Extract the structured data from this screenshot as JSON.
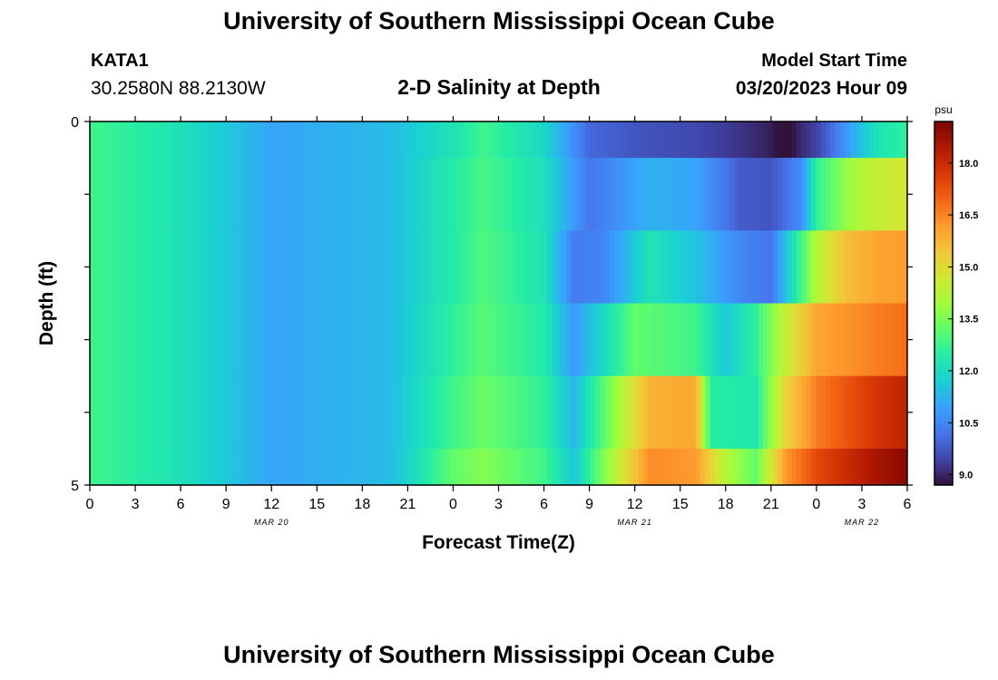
{
  "header": {
    "title_top": "University of Southern Mississippi Ocean Cube",
    "title_bottom": "University of Southern Mississippi Ocean Cube",
    "station_id": "KATA1",
    "station_coords": "30.2580N  88.2130W",
    "chart_title": "2-D Salinity at Depth",
    "model_start_label": "Model Start Time",
    "model_start_value": "03/20/2023 Hour 09"
  },
  "colors": {
    "colormap": [
      "#30123b",
      "#4145ab",
      "#4675ed",
      "#39a2fc",
      "#1bcfd4",
      "#24eca6",
      "#61fc6c",
      "#a4fc3b",
      "#d1e834",
      "#f3c63a",
      "#fe9b2d",
      "#f36315",
      "#d93806",
      "#b11901",
      "#7a0402"
    ]
  },
  "chart_data": {
    "type": "heatmap",
    "title": "2-D Salinity at Depth",
    "xlabel": "Forecast Time(Z)",
    "ylabel": "Depth (ft)",
    "x_tick_labels": [
      "0",
      "3",
      "6",
      "9",
      "12",
      "15",
      "18",
      "21",
      "0",
      "3",
      "6",
      "9",
      "12",
      "15",
      "18",
      "21",
      "0",
      "3",
      "6"
    ],
    "date_labels": [
      {
        "text": "MAR 20",
        "hour_index": 12
      },
      {
        "text": "MAR 21",
        "hour_index": 36
      },
      {
        "text": "MAR 22",
        "hour_index": 51
      }
    ],
    "x_range_hours": [
      0,
      54
    ],
    "y_tick_labels": [
      "0",
      "5"
    ],
    "y_range": [
      0,
      5
    ],
    "colorbar": {
      "unit": "psu",
      "range": [
        8.7,
        19.2
      ],
      "tick_labels": [
        "9.0",
        "10.5",
        "12.0",
        "13.5",
        "15.0",
        "16.5",
        "18.0"
      ],
      "tick_values": [
        9.0,
        10.5,
        12.0,
        13.5,
        15.0,
        16.5,
        18.0
      ]
    },
    "depth_layers": [
      {
        "depth_range": [
          0,
          0.5
        ],
        "t": [
          0,
          5,
          9,
          12,
          20,
          24,
          26,
          30,
          33,
          36,
          40,
          43,
          45,
          46,
          46.5,
          47,
          48,
          50,
          52,
          54
        ],
        "v": [
          12.8,
          12.3,
          11.6,
          11.0,
          11.4,
          12.2,
          12.8,
          11.9,
          10.0,
          9.7,
          9.5,
          9.2,
          8.9,
          8.4,
          8.8,
          9.1,
          9.4,
          10.8,
          12.2,
          12.6
        ]
      },
      {
        "depth_range": [
          0.5,
          1.5
        ],
        "t": [
          0,
          5,
          9,
          12,
          20,
          24,
          26,
          30,
          33,
          37,
          40,
          43,
          45,
          47,
          48,
          50,
          52,
          54
        ],
        "v": [
          12.8,
          12.3,
          11.6,
          11.0,
          11.4,
          12.4,
          12.9,
          12.1,
          10.2,
          11.2,
          11.0,
          9.8,
          9.7,
          10.6,
          12.6,
          13.8,
          14.5,
          14.8
        ]
      },
      {
        "depth_range": [
          1.5,
          2.5
        ],
        "t": [
          0,
          5,
          9,
          12,
          20,
          24,
          26,
          30,
          32,
          34,
          37,
          40,
          43,
          45,
          46,
          48,
          50,
          52,
          54
        ],
        "v": [
          12.8,
          12.3,
          11.6,
          11.0,
          11.4,
          12.4,
          13.0,
          12.2,
          10.3,
          10.5,
          12.2,
          11.5,
          10.5,
          10.2,
          11.5,
          14.2,
          15.6,
          16.0,
          16.2
        ]
      },
      {
        "depth_range": [
          2.5,
          3.5
        ],
        "t": [
          0,
          5,
          9,
          12,
          20,
          24,
          26,
          30,
          32,
          36,
          40,
          42,
          44,
          46,
          48,
          50,
          52,
          54
        ],
        "v": [
          12.8,
          12.3,
          11.6,
          11.0,
          11.4,
          12.6,
          13.1,
          12.4,
          10.8,
          13.2,
          12.8,
          11.6,
          12.6,
          14.5,
          16.0,
          16.3,
          16.6,
          16.8
        ]
      },
      {
        "depth_range": [
          3.5,
          4.5
        ],
        "t": [
          0,
          5,
          9,
          12,
          20,
          24,
          26,
          30,
          32,
          34,
          37,
          40,
          41,
          44,
          46,
          48,
          50,
          52,
          54
        ],
        "v": [
          12.8,
          12.3,
          11.6,
          11.0,
          11.4,
          12.8,
          13.3,
          12.6,
          11.3,
          13.2,
          15.8,
          16.0,
          12.5,
          12.3,
          15.2,
          16.6,
          17.2,
          17.8,
          18.2
        ]
      },
      {
        "depth_range": [
          4.5,
          5
        ],
        "t": [
          0,
          5,
          9,
          12,
          20,
          24,
          26,
          30,
          32,
          34,
          37,
          40,
          42,
          44,
          46,
          48,
          50,
          52,
          54
        ],
        "v": [
          12.8,
          12.3,
          11.6,
          11.0,
          11.4,
          13.2,
          13.6,
          12.8,
          11.6,
          13.6,
          16.4,
          16.2,
          14.2,
          13.2,
          16.2,
          17.4,
          18.0,
          18.6,
          19.0
        ]
      }
    ]
  }
}
